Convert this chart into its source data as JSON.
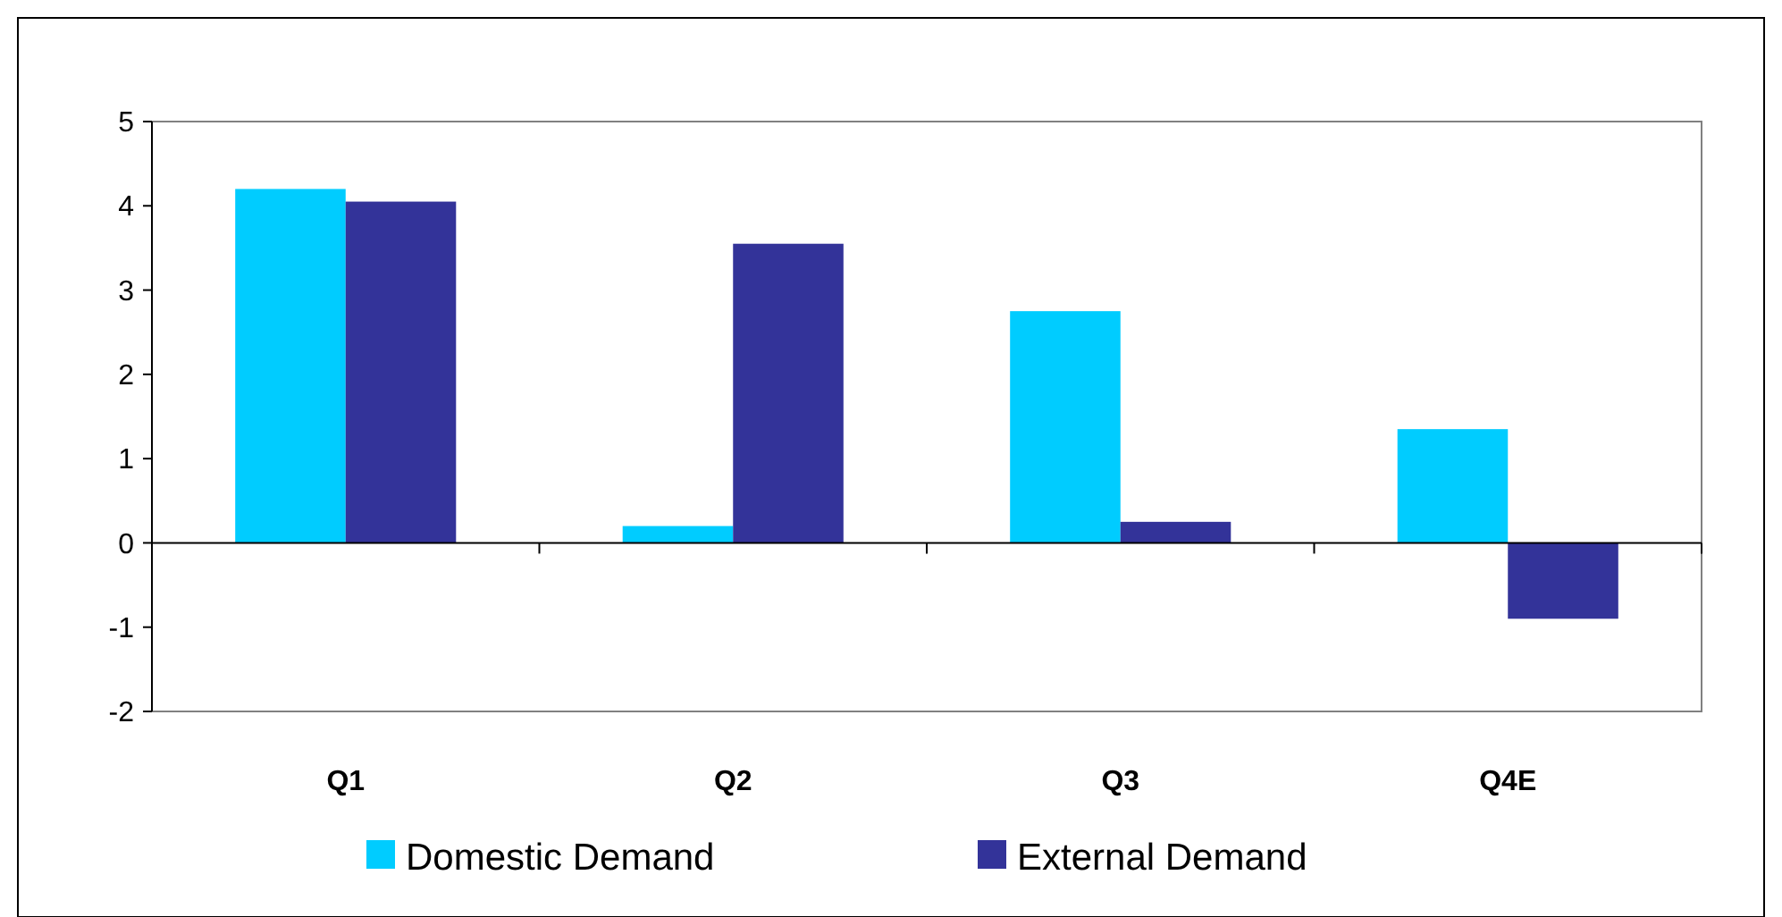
{
  "chart_data": {
    "type": "bar",
    "categories": [
      "Q1",
      "Q2",
      "Q3",
      "Q4E"
    ],
    "series": [
      {
        "name": "Domestic Demand",
        "color": "#00ccff",
        "values": [
          4.2,
          0.2,
          2.75,
          1.35
        ]
      },
      {
        "name": "External Demand",
        "color": "#333399",
        "values": [
          4.05,
          3.55,
          0.25,
          -0.9
        ]
      }
    ],
    "ylim": [
      -2,
      5
    ],
    "yticks": [
      -2,
      -1,
      0,
      1,
      2,
      3,
      4,
      5
    ],
    "legend": "bottom"
  }
}
